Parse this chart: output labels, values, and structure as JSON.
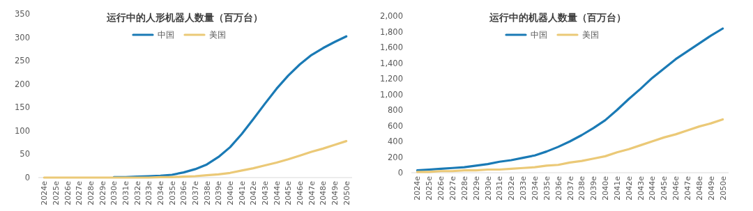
{
  "chart_data": [
    {
      "type": "line",
      "title": "运行中的人形机器人数量（百万台）",
      "legend": "top",
      "line_style": "solid",
      "marker": "none",
      "categories": [
        "2024e",
        "2025e",
        "2026e",
        "2027e",
        "2028e",
        "2029e",
        "2030e",
        "2031e",
        "2032e",
        "2033e",
        "2034e",
        "2035e",
        "2036e",
        "2037e",
        "2038e",
        "2039e",
        "2040e",
        "2041e",
        "2042e",
        "2043e",
        "2044e",
        "2045e",
        "2046e",
        "2047e",
        "2048e",
        "2049e",
        "2050e"
      ],
      "ylim": [
        0,
        350
      ],
      "yticks": [
        0,
        50,
        100,
        150,
        200,
        250,
        300,
        350
      ],
      "series": [
        {
          "name": "中国",
          "color": "#1a7ab5",
          "values": [
            null,
            null,
            null,
            null,
            null,
            null,
            1,
            1,
            2,
            3,
            4,
            6,
            11,
            18,
            28,
            44,
            65,
            93,
            125,
            158,
            190,
            218,
            242,
            262,
            277,
            290,
            302
          ]
        },
        {
          "name": "美国",
          "color": "#ebc977",
          "values": [
            0,
            0,
            0,
            0,
            0,
            0,
            0,
            0,
            0,
            0,
            1,
            1,
            2,
            3,
            5,
            7,
            10,
            15,
            20,
            26,
            32,
            39,
            47,
            55,
            62,
            70,
            78
          ]
        }
      ]
    },
    {
      "type": "line",
      "title": "运行中的机器人数量（百万台）",
      "legend": "top",
      "line_style": "solid",
      "marker": "none",
      "categories": [
        "2024e",
        "2025e",
        "2026e",
        "2027e",
        "2028e",
        "2029e",
        "2030e",
        "2031e",
        "2032e",
        "2033e",
        "2034e",
        "2035e",
        "2036e",
        "2037e",
        "2038e",
        "2039e",
        "2040e",
        "2041e",
        "2042e",
        "2043e",
        "2044e",
        "2045e",
        "2046e",
        "2047e",
        "2048e",
        "2049e",
        "2050e"
      ],
      "ylim": [
        0,
        2000
      ],
      "yticks": [
        0,
        200,
        400,
        600,
        800,
        {
          "value": 1000,
          "label": "1,000"
        },
        {
          "value": 1200,
          "label": "1,200"
        },
        {
          "value": 1400,
          "label": "1,400"
        },
        {
          "value": 1600,
          "label": "1,600"
        },
        {
          "value": 1800,
          "label": "1,800"
        },
        {
          "value": 2000,
          "label": "2,000"
        }
      ],
      "series": [
        {
          "name": "中国",
          "color": "#1a7ab5",
          "values": [
            30,
            40,
            50,
            60,
            70,
            90,
            110,
            140,
            160,
            190,
            220,
            270,
            330,
            400,
            480,
            570,
            670,
            800,
            940,
            1070,
            1210,
            1330,
            1450,
            1550,
            1650,
            1750,
            1840
          ]
        },
        {
          "name": "美国",
          "color": "#ebc977",
          "values": [
            10,
            10,
            20,
            20,
            30,
            30,
            40,
            40,
            50,
            60,
            70,
            90,
            100,
            130,
            150,
            180,
            210,
            260,
            300,
            350,
            400,
            450,
            490,
            540,
            590,
            630,
            680
          ]
        }
      ]
    }
  ]
}
